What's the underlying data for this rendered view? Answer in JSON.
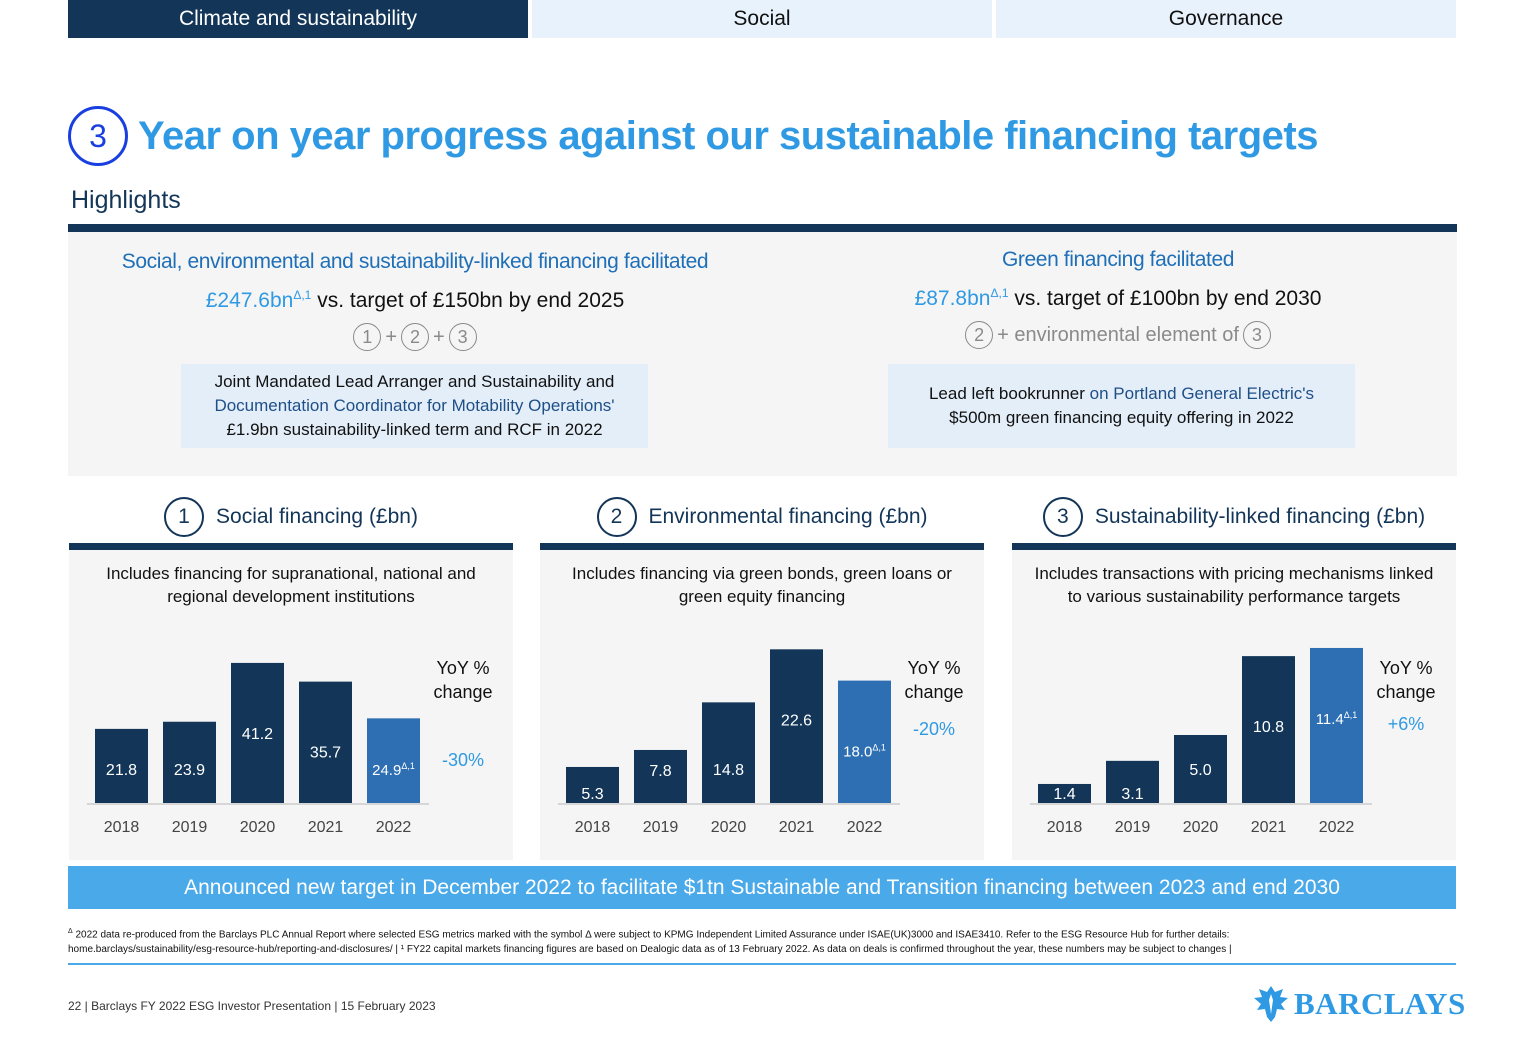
{
  "tabs": [
    "Climate and sustainability",
    "Social",
    "Governance"
  ],
  "title_number": "3",
  "title": "Year on year progress against our sustainable financing targets",
  "highlights_label": "Highlights",
  "highlight_left": {
    "heading": "Social, environmental and sustainability-linked financing facilitated",
    "value": "£247.6bn",
    "value_sup": "Δ,1",
    "target_text": "vs. target of £150bn by end 2025",
    "formula": [
      "1",
      "+",
      "2",
      "+",
      "3"
    ],
    "box_line1": "Joint Mandated Lead Arranger and Sustainability and",
    "box_line2": "Documentation Coordinator for Motability Operations'",
    "box_line3": "£1.9bn sustainability-linked term and RCF in 2022"
  },
  "highlight_right": {
    "heading": "Green financing facilitated",
    "value": "£87.8bn",
    "value_sup": "Δ,1",
    "target_text": "vs. target of £100bn by end 2030",
    "formula_num1": "2",
    "formula_text": "+ environmental element of",
    "formula_num2": "3",
    "box_line1a": "Lead left bookrunner",
    "box_line1b": "on Portland General Electric's",
    "box_line2": "$500m green financing equity offering in 2022"
  },
  "chart_data": [
    {
      "type": "bar",
      "number": "1",
      "title": "Social financing (£bn)",
      "description_line1": "Includes financing for supranational, national and",
      "description_line2": "regional development institutions",
      "categories": [
        "2018",
        "2019",
        "2020",
        "2021",
        "2022"
      ],
      "values": [
        21.8,
        23.9,
        41.2,
        35.7,
        24.9
      ],
      "value_labels": [
        "21.8",
        "23.9",
        "41.2",
        "35.7",
        "24.9"
      ],
      "last_bar_sup": "Δ,1",
      "yoy_label_line1": "YoY %",
      "yoy_label_line2": "change",
      "yoy_value": "-30%",
      "ylim": [
        0,
        50
      ]
    },
    {
      "type": "bar",
      "number": "2",
      "title": "Environmental financing (£bn)",
      "description_line1": "Includes financing via green bonds, green loans or",
      "description_line2": "green equity financing",
      "categories": [
        "2018",
        "2019",
        "2020",
        "2021",
        "2022"
      ],
      "values": [
        5.3,
        7.8,
        14.8,
        22.6,
        18.0
      ],
      "value_labels": [
        "5.3",
        "7.8",
        "14.8",
        "22.6",
        "18.0"
      ],
      "last_bar_sup": "Δ,1",
      "yoy_label_line1": "YoY %",
      "yoy_label_line2": "change",
      "yoy_value": "-20%",
      "ylim": [
        0,
        25
      ]
    },
    {
      "type": "bar",
      "number": "3",
      "title": "Sustainability-linked financing (£bn)",
      "description_line1": "Includes transactions with pricing mechanisms linked",
      "description_line2": "to various sustainability performance targets",
      "categories": [
        "2018",
        "2019",
        "2020",
        "2021",
        "2022"
      ],
      "values": [
        1.4,
        3.1,
        5.0,
        10.8,
        11.4
      ],
      "value_labels": [
        "1.4",
        "3.1",
        "5.0",
        "10.8",
        "11.4"
      ],
      "last_bar_sup": "Δ,1",
      "yoy_label_line1": "YoY %",
      "yoy_label_line2": "change",
      "yoy_value": "+6%",
      "ylim": [
        0,
        12.5
      ]
    }
  ],
  "banner": "Announced new target in December 2022 to facilitate $1tn Sustainable and Transition financing between 2023 and end 2030",
  "footnote_sup": "Δ",
  "footnote_line1": "2022 data re-produced from the Barclays PLC Annual Report where selected ESG metrics marked with the symbol Δ were subject to KPMG Independent Limited Assurance under ISAE(UK)3000 and ISAE3410. Refer to the ESG Resource Hub for further details:",
  "footnote_line2": "home.barclays/sustainability/esg-resource-hub/reporting-and-disclosures/ | ¹ FY22 capital markets financing figures are based on Dealogic data as of 13 February 2022. As data on deals is confirmed throughout the year, these numbers may be subject to changes |",
  "footer": "22  |  Barclays FY 2022 ESG Investor Presentation  |  15 February 2023",
  "logo_text": "BARCLAYS",
  "colors": {
    "navy": "#123558",
    "bar_highlight": "#2e6fb4",
    "accent_blue": "#2f9ae3",
    "banner": "#4aa9e9"
  }
}
